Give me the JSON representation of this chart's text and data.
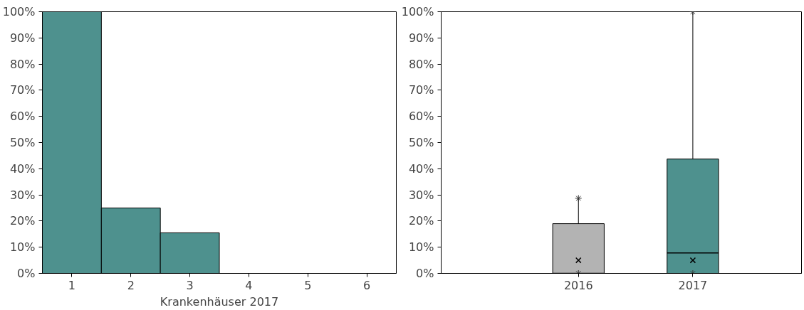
{
  "chart_data": [
    {
      "type": "histogram",
      "xlabel": "Krankenhäuser 2017",
      "bins": [
        0.5,
        1.5,
        2.5,
        3.5,
        4.5,
        5.5,
        6.5
      ],
      "values": [
        100,
        25,
        15.5,
        0,
        0,
        0
      ],
      "color": "#4e918e",
      "xlim": [
        0.5,
        6.5
      ],
      "xticks": [
        1,
        2,
        3,
        4,
        5,
        6
      ],
      "ylim": [
        0,
        100
      ],
      "yticks": [
        {
          "value": 0,
          "label": "0%"
        },
        {
          "value": 10,
          "label": "10%"
        },
        {
          "value": 20,
          "label": "20%"
        },
        {
          "value": 30,
          "label": "30%"
        },
        {
          "value": 40,
          "label": "40%"
        },
        {
          "value": 50,
          "label": "50%"
        },
        {
          "value": 60,
          "label": "60%"
        },
        {
          "value": 70,
          "label": "70%"
        },
        {
          "value": 80,
          "label": "80%"
        },
        {
          "value": 90,
          "label": "90%"
        },
        {
          "value": 100,
          "label": "100%"
        }
      ],
      "grid": false
    },
    {
      "type": "box",
      "categories": [
        "2016",
        "2017"
      ],
      "colors": [
        "#b3b3b3",
        "#4e918e"
      ],
      "boxes": [
        {
          "low": 0,
          "q1": 0,
          "median": 0,
          "q3": 19,
          "high": 28.7,
          "mean": 5
        },
        {
          "low": 0,
          "q1": 0,
          "median": 7.8,
          "q3": 43.7,
          "high": 100,
          "mean": 5
        }
      ],
      "ylim": [
        0,
        100
      ],
      "yticks": [
        {
          "value": 0,
          "label": "0%"
        },
        {
          "value": 10,
          "label": "10%"
        },
        {
          "value": 20,
          "label": "20%"
        },
        {
          "value": 30,
          "label": "30%"
        },
        {
          "value": 40,
          "label": "40%"
        },
        {
          "value": 50,
          "label": "50%"
        },
        {
          "value": 60,
          "label": "60%"
        },
        {
          "value": 70,
          "label": "70%"
        },
        {
          "value": 80,
          "label": "80%"
        },
        {
          "value": 90,
          "label": "90%"
        },
        {
          "value": 100,
          "label": "100%"
        }
      ],
      "grid": false
    }
  ]
}
